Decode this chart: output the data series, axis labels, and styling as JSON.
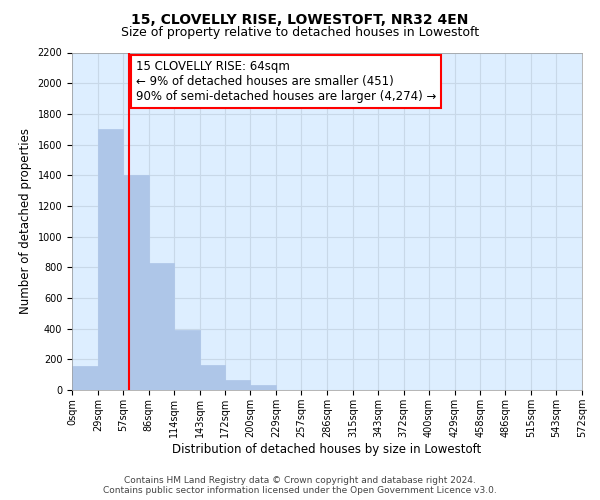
{
  "title": "15, CLOVELLY RISE, LOWESTOFT, NR32 4EN",
  "subtitle": "Size of property relative to detached houses in Lowestoft",
  "xlabel": "Distribution of detached houses by size in Lowestoft",
  "ylabel": "Number of detached properties",
  "bin_edges": [
    0,
    29,
    57,
    86,
    114,
    143,
    172,
    200,
    229,
    257,
    286,
    315,
    343,
    372,
    400,
    429,
    458,
    486,
    515,
    543,
    572
  ],
  "bin_labels": [
    "0sqm",
    "29sqm",
    "57sqm",
    "86sqm",
    "114sqm",
    "143sqm",
    "172sqm",
    "200sqm",
    "229sqm",
    "257sqm",
    "286sqm",
    "315sqm",
    "343sqm",
    "372sqm",
    "400sqm",
    "429sqm",
    "458sqm",
    "486sqm",
    "515sqm",
    "543sqm",
    "572sqm"
  ],
  "counts": [
    155,
    1700,
    1400,
    830,
    390,
    165,
    65,
    30,
    0,
    0,
    0,
    0,
    0,
    0,
    0,
    0,
    0,
    0,
    0,
    0
  ],
  "bar_color": "#aec6e8",
  "bar_edge_color": "#aec6e8",
  "property_line_x": 64,
  "property_line_color": "red",
  "annotation_line1": "15 CLOVELLY RISE: 64sqm",
  "annotation_line2": "← 9% of detached houses are smaller (451)",
  "annotation_line3": "90% of semi-detached houses are larger (4,274) →",
  "annotation_box_color": "white",
  "annotation_box_edge_color": "red",
  "ylim": [
    0,
    2200
  ],
  "yticks": [
    0,
    200,
    400,
    600,
    800,
    1000,
    1200,
    1400,
    1600,
    1800,
    2000,
    2200
  ],
  "grid_color": "#c8d8e8",
  "background_color": "#ddeeff",
  "footer_line1": "Contains HM Land Registry data © Crown copyright and database right 2024.",
  "footer_line2": "Contains public sector information licensed under the Open Government Licence v3.0.",
  "title_fontsize": 10,
  "subtitle_fontsize": 9,
  "axis_label_fontsize": 8.5,
  "tick_fontsize": 7,
  "annotation_fontsize": 8.5,
  "footer_fontsize": 6.5
}
